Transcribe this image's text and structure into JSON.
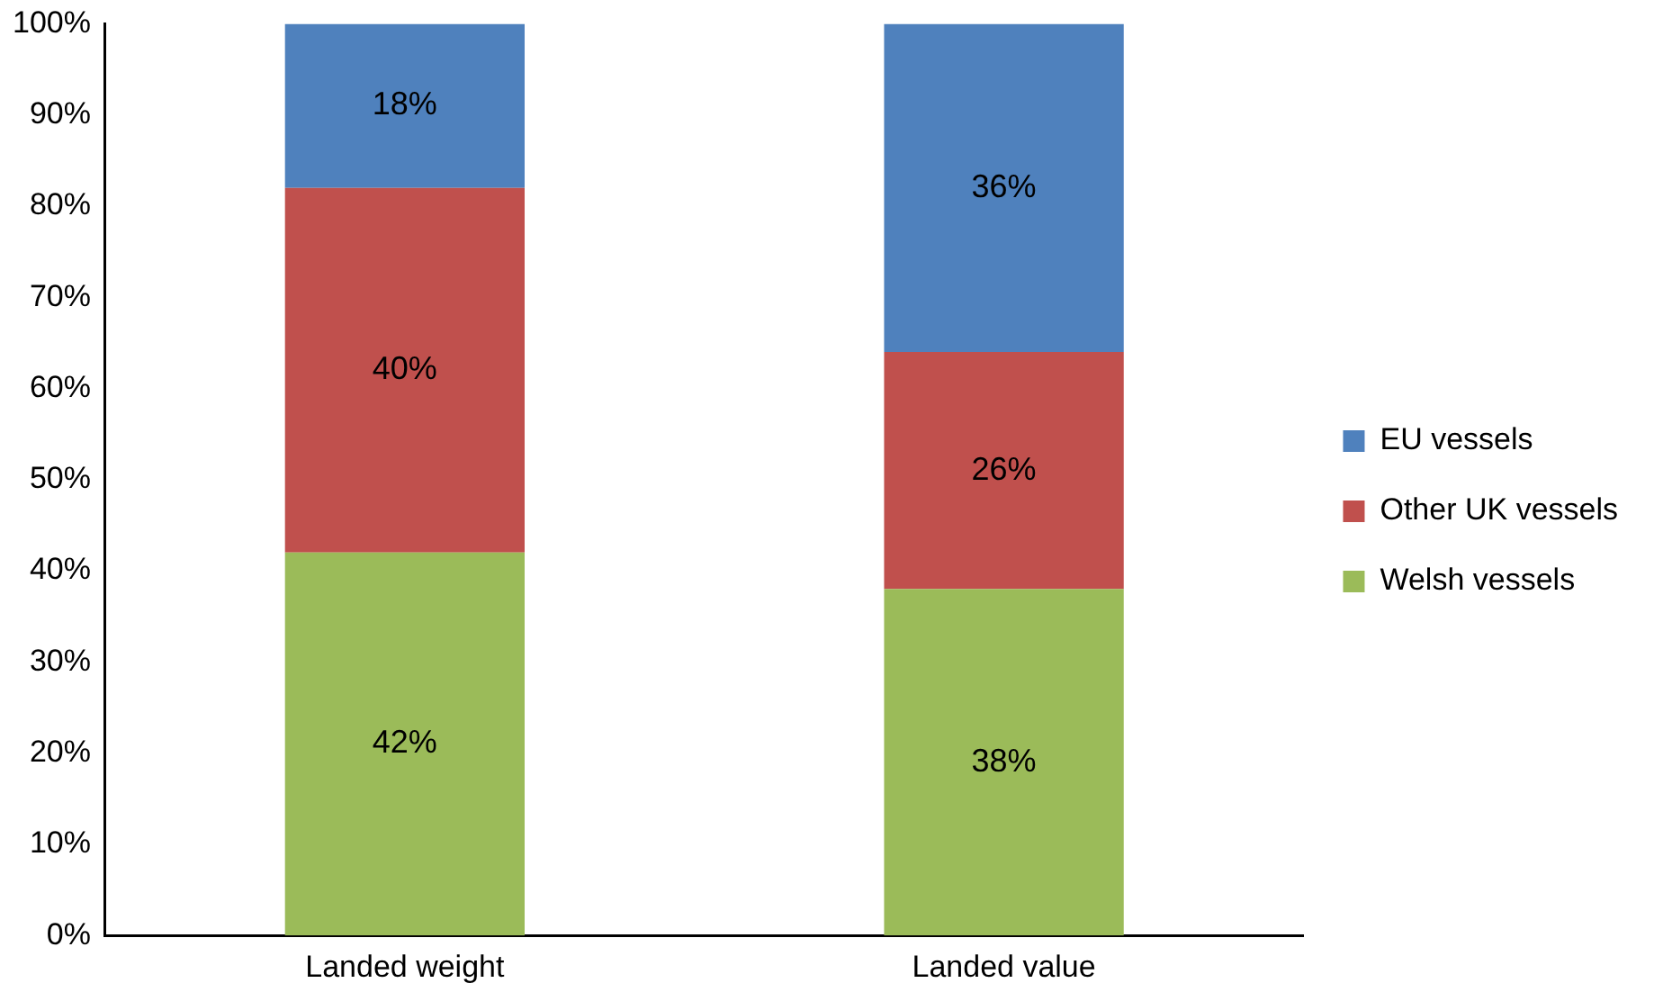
{
  "chart_data": {
    "type": "bar",
    "stacked": true,
    "categories": [
      "Landed weight",
      "Landed value"
    ],
    "series": [
      {
        "name": "Welsh vessels",
        "color": "#9bbb59",
        "values": [
          42,
          38
        ],
        "value_labels": [
          "42%",
          "38%"
        ]
      },
      {
        "name": "Other UK vessels",
        "color": "#c0504d",
        "values": [
          40,
          26
        ],
        "value_labels": [
          "40%",
          "26%"
        ]
      },
      {
        "name": "EU vessels",
        "color": "#4f81bd",
        "values": [
          18,
          36
        ],
        "value_labels": [
          "18%",
          "36%"
        ]
      }
    ],
    "ylim": [
      0,
      100
    ],
    "yticks": [
      {
        "value": 0,
        "label": "0%"
      },
      {
        "value": 10,
        "label": "10%"
      },
      {
        "value": 20,
        "label": "20%"
      },
      {
        "value": 30,
        "label": "30%"
      },
      {
        "value": 40,
        "label": "40%"
      },
      {
        "value": 50,
        "label": "50%"
      },
      {
        "value": 60,
        "label": "60%"
      },
      {
        "value": 70,
        "label": "70%"
      },
      {
        "value": 80,
        "label": "80%"
      },
      {
        "value": 90,
        "label": "90%"
      },
      {
        "value": 100,
        "label": "100%"
      }
    ],
    "legend": "right"
  }
}
